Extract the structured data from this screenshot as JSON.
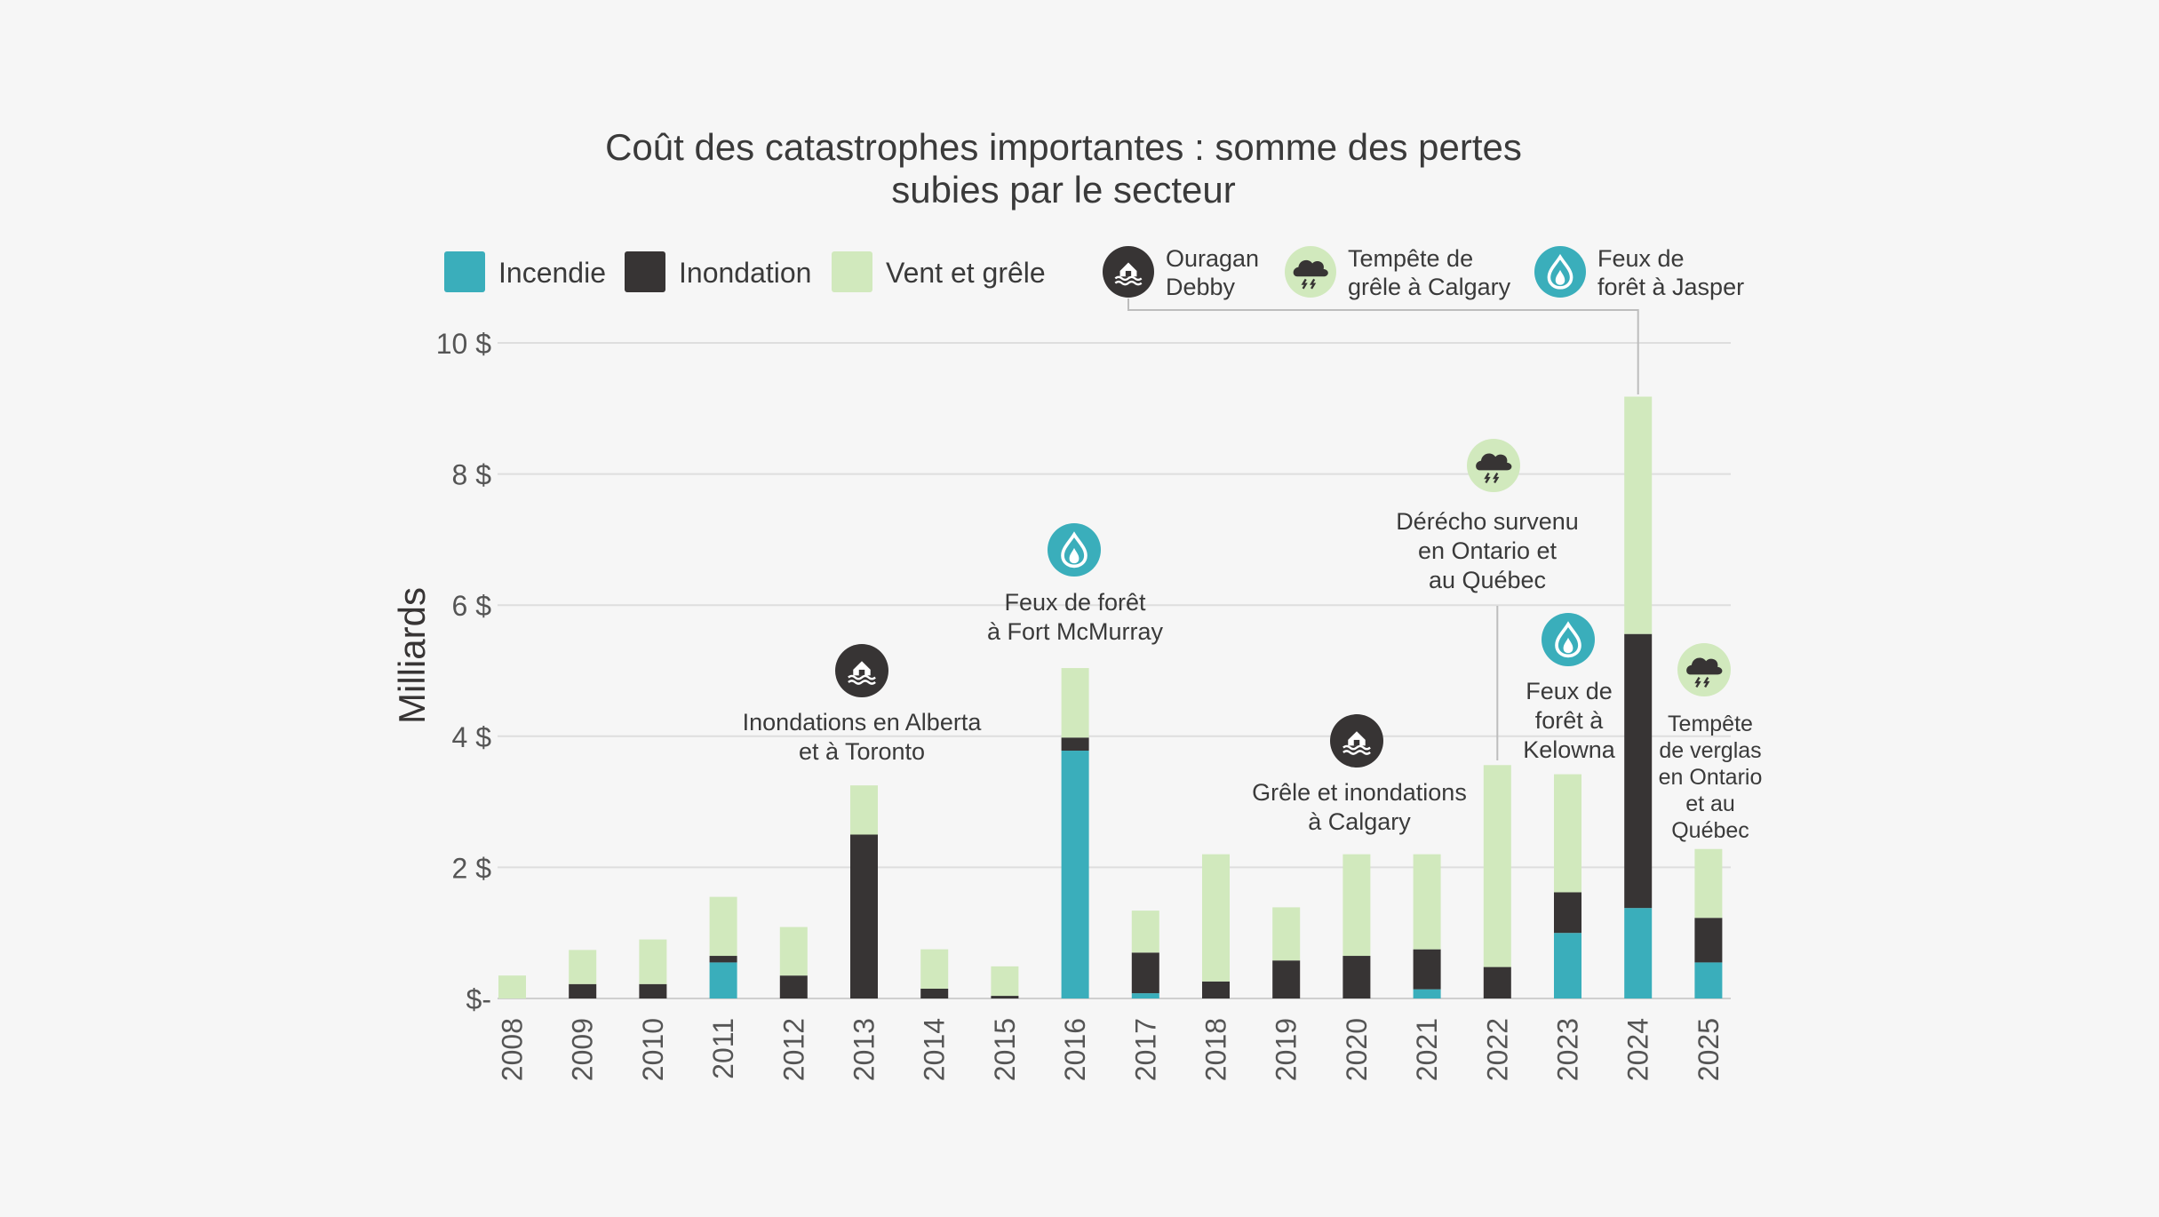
{
  "chart_data": {
    "type": "bar",
    "stacked": true,
    "title_lines": [
      "Coût des catastrophes importantes : somme des pertes",
      "subies par le secteur"
    ],
    "ylabel": "Milliards",
    "ylim": [
      0,
      10
    ],
    "yticks": [
      {
        "value": 0,
        "label": "$-"
      },
      {
        "value": 2,
        "label": "2 $"
      },
      {
        "value": 4,
        "label": "4 $"
      },
      {
        "value": 6,
        "label": "6 $"
      },
      {
        "value": 8,
        "label": "8 $"
      },
      {
        "value": 10,
        "label": "10 $"
      }
    ],
    "grid": true,
    "categories": [
      "2008",
      "2009",
      "2010",
      "2011",
      "2012",
      "2013",
      "2014",
      "2015",
      "2016",
      "2017",
      "2018",
      "2019",
      "2020",
      "2021",
      "2022",
      "2023",
      "2024",
      "2025"
    ],
    "series": [
      {
        "name": "Incendie",
        "color": "#3aaebb",
        "values": [
          0,
          0,
          0,
          0.55,
          0,
          0,
          0,
          0,
          3.78,
          0.08,
          0,
          0,
          0,
          0.14,
          0,
          1.0,
          1.38,
          0.55
        ]
      },
      {
        "name": "Inondation",
        "color": "#373434",
        "values": [
          0,
          0.22,
          0.22,
          0.1,
          0.35,
          2.5,
          0.15,
          0.04,
          0.2,
          0.62,
          0.26,
          0.58,
          0.65,
          0.61,
          0.48,
          0.62,
          4.18,
          0.68
        ]
      },
      {
        "name": "Vent et grêle",
        "color": "#d1e9bd",
        "values": [
          0.35,
          0.52,
          0.68,
          0.9,
          0.74,
          0.75,
          0.6,
          0.45,
          1.06,
          0.64,
          1.94,
          0.81,
          1.55,
          1.45,
          3.08,
          1.8,
          3.62,
          1.05
        ]
      }
    ],
    "legend_position": "top",
    "event_legend": [
      {
        "label_lines": [
          "Ouragan",
          "Debby"
        ],
        "icon": "flood-house-icon"
      },
      {
        "label_lines": [
          "Tempête de",
          "grêle à Calgary"
        ],
        "icon": "storm-cloud-icon"
      },
      {
        "label_lines": [
          "Feux de",
          "forêt à Jasper"
        ],
        "icon": "fire-drop-icon"
      }
    ],
    "annotations": [
      {
        "category": "2013",
        "icon": "flood-house-icon",
        "label_lines": [
          "Inondations en Alberta",
          "et à Toronto"
        ]
      },
      {
        "category": "2016",
        "icon": "fire-drop-icon",
        "label_lines": [
          "Feux de forêt",
          "à Fort McMurray"
        ]
      },
      {
        "category": "2020",
        "icon": "flood-house-icon",
        "label_lines": [
          "Grêle et inondations",
          "à Calgary"
        ]
      },
      {
        "category": "2022",
        "icon": "storm-cloud-icon",
        "label_lines": [
          "Dérécho survenu",
          "en Ontario et",
          "au Québec"
        ]
      },
      {
        "category": "2023",
        "icon": "fire-drop-icon",
        "label_lines": [
          "Feux de",
          "forêt à",
          "Kelowna"
        ]
      },
      {
        "category": "2025",
        "icon": "storm-cloud-icon",
        "label_lines": [
          "Tempête",
          "de verglas",
          "en Ontario",
          "et au",
          "Québec"
        ]
      }
    ]
  }
}
